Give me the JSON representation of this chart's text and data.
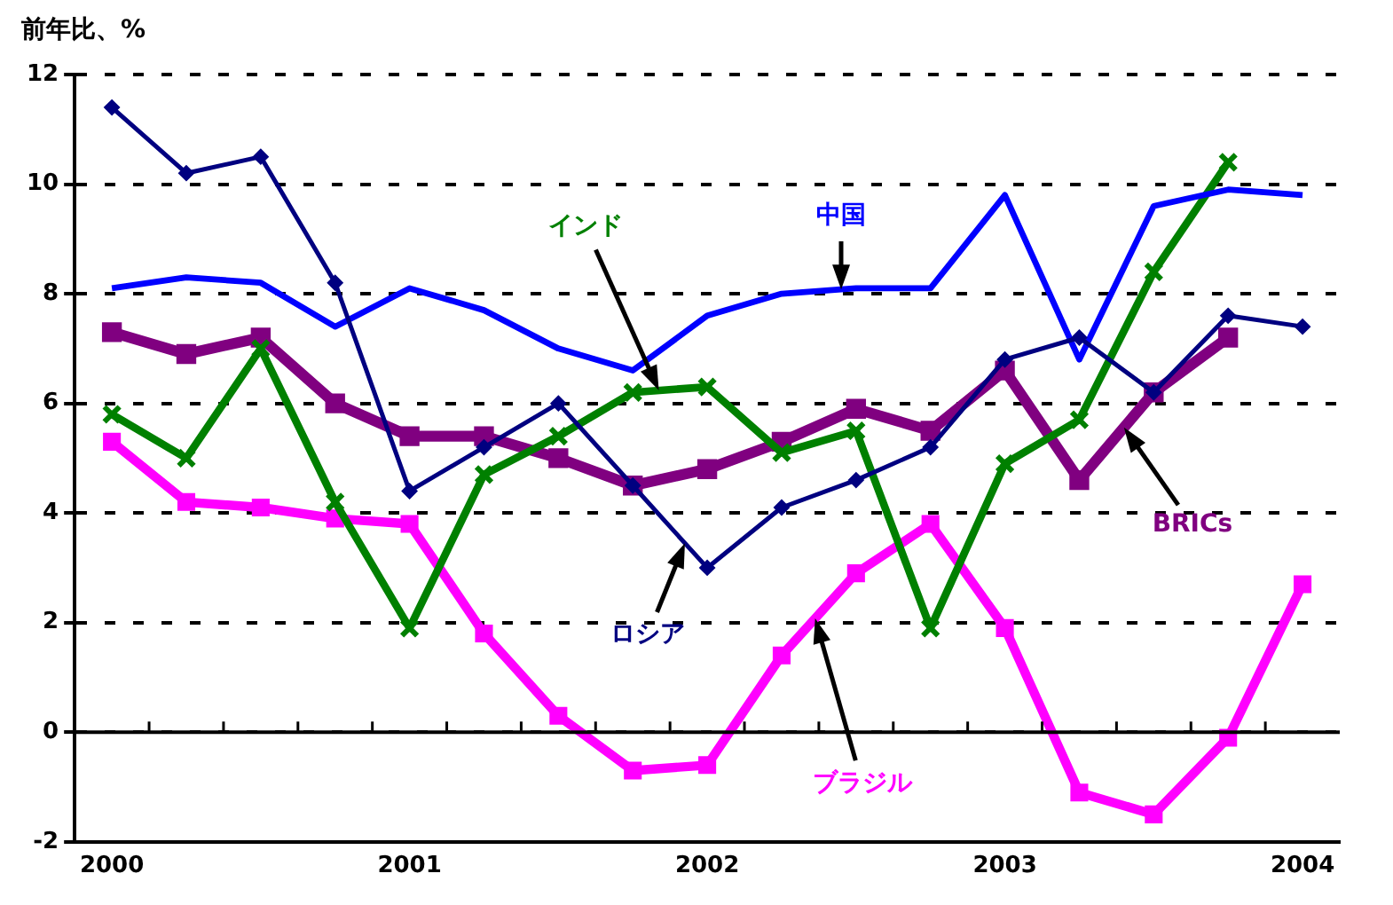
{
  "chart_data": {
    "type": "line",
    "ylabel": "前年比、%",
    "categories": [
      "2000",
      null,
      null,
      null,
      "2001",
      null,
      null,
      null,
      "2002",
      null,
      null,
      null,
      "2003",
      null,
      null,
      null,
      "2004"
    ],
    "series": [
      {
        "name": "ロシア",
        "color": "#000080",
        "marker": "diamond",
        "values": [
          11.4,
          10.2,
          10.5,
          8.2,
          4.4,
          5.2,
          6.0,
          4.5,
          3.0,
          4.1,
          4.6,
          5.2,
          6.8,
          7.2,
          6.2,
          7.6,
          7.4
        ]
      },
      {
        "name": "中国",
        "color": "#0000ff",
        "marker": "none",
        "values": [
          8.1,
          8.3,
          8.2,
          7.4,
          8.1,
          7.7,
          7.0,
          6.6,
          7.6,
          8.0,
          8.1,
          8.1,
          9.8,
          6.8,
          9.6,
          9.9,
          9.8
        ]
      },
      {
        "name": "インド",
        "color": "#008000",
        "marker": "cross",
        "values": [
          5.8,
          5.0,
          7.0,
          4.2,
          1.9,
          4.7,
          5.4,
          6.2,
          6.3,
          5.1,
          5.5,
          1.9,
          4.9,
          5.7,
          8.4,
          10.4,
          null
        ]
      },
      {
        "name": "ブラジル",
        "color": "#ff00ff",
        "marker": "square",
        "values": [
          5.3,
          4.2,
          4.1,
          3.9,
          3.8,
          1.8,
          0.3,
          -0.7,
          -0.6,
          1.4,
          2.9,
          3.8,
          1.9,
          -1.1,
          -1.5,
          -0.1,
          2.7
        ]
      },
      {
        "name": "BRICs",
        "color": "#800080",
        "marker": "square",
        "values": [
          7.3,
          6.9,
          7.2,
          6.0,
          5.4,
          5.4,
          5.0,
          4.5,
          4.8,
          5.3,
          5.9,
          5.5,
          6.6,
          4.6,
          6.2,
          7.2,
          null
        ]
      }
    ],
    "ylim": [
      -2,
      12
    ],
    "yticks": [
      -2,
      0,
      2,
      4,
      6,
      8,
      10,
      12
    ],
    "grid": "y",
    "legend": false,
    "ref_lines": [
      {
        "axis": "y",
        "value": 0,
        "color": "#000000",
        "line_style": "solid"
      }
    ]
  }
}
